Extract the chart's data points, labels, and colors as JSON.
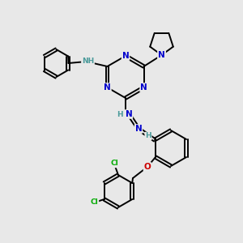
{
  "bg_color": "#e8e8e8",
  "atom_colors": {
    "N": "#0000cc",
    "O": "#cc0000",
    "Cl": "#00aa00",
    "C": "#000000",
    "H": "#4a9a9a"
  },
  "bond_color": "#000000",
  "figsize": [
    3.0,
    3.0
  ],
  "dpi": 100,
  "lw": 1.4,
  "fs": 7.5,
  "fs_small": 6.5
}
